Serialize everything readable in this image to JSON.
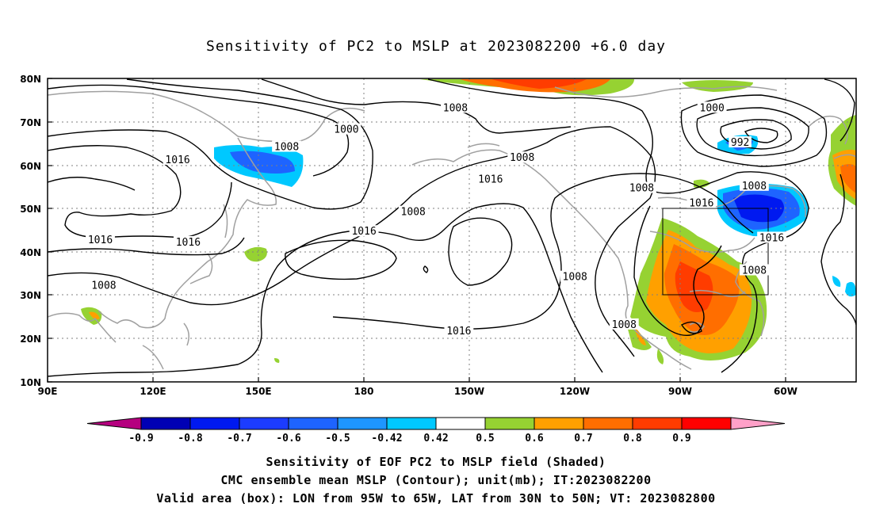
{
  "title": "Sensitivity of PC2 to MSLP at 2023082200 +6.0 day",
  "map": {
    "lat_labels": [
      "80N",
      "70N",
      "60N",
      "50N",
      "40N",
      "30N",
      "20N",
      "10N"
    ],
    "lon_labels": [
      "90E",
      "120E",
      "150E",
      "180",
      "150W",
      "120W",
      "90W",
      "60W"
    ],
    "contour_labels": [
      {
        "text": "1000",
        "lon": 175,
        "lat": 68
      },
      {
        "text": "1008",
        "lon": 158,
        "lat": 64
      },
      {
        "text": "1016",
        "lon": 127,
        "lat": 61
      },
      {
        "text": "1016",
        "lon": 105,
        "lat": 42.5
      },
      {
        "text": "1016",
        "lon": 130,
        "lat": 42
      },
      {
        "text": "1008",
        "lon": 106,
        "lat": 32
      },
      {
        "text": "1008",
        "lon": 194,
        "lat": 49
      },
      {
        "text": "1016",
        "lon": 180,
        "lat": 44.5
      },
      {
        "text": "1008",
        "lon": 206,
        "lat": 73
      },
      {
        "text": "1008",
        "lon": 225,
        "lat": 61.5
      },
      {
        "text": "1016",
        "lon": 216,
        "lat": 56.5
      },
      {
        "text": "1016",
        "lon": 207,
        "lat": 21.5
      },
      {
        "text": "1008",
        "lon": 240,
        "lat": 34
      },
      {
        "text": "1008",
        "lon": 254,
        "lat": 23
      },
      {
        "text": "1008",
        "lon": 259,
        "lat": 54.5
      },
      {
        "text": "1000",
        "lon": 279,
        "lat": 73
      },
      {
        "text": "992",
        "lon": 287,
        "lat": 65
      },
      {
        "text": "1008",
        "lon": 291,
        "lat": 55
      },
      {
        "text": "1016",
        "lon": 276,
        "lat": 51
      },
      {
        "text": "1016",
        "lon": 296,
        "lat": 43
      },
      {
        "text": "1008",
        "lon": 291,
        "lat": 35.5
      }
    ],
    "valid_box": {
      "lon_min": 265,
      "lon_max": 295,
      "lat_min": 30,
      "lat_max": 50
    }
  },
  "colorbar": {
    "labels": [
      "-0.9",
      "-0.8",
      "-0.7",
      "-0.6",
      "-0.5",
      "-0.42",
      "0.42",
      "0.5",
      "0.6",
      "0.7",
      "0.8",
      "0.9"
    ],
    "colors": [
      "#b5007f",
      "#0000b4",
      "#0019f0",
      "#1c3cff",
      "#1e64ff",
      "#1e96ff",
      "#00c8ff",
      "#ffffff",
      "#96d232",
      "#ffa000",
      "#ff6e00",
      "#ff3c00",
      "#ff0000",
      "#ffa0c8"
    ]
  },
  "footer": {
    "line1": "Sensitivity of EOF PC2 to MSLP field (Shaded)",
    "line2": "CMC ensemble mean MSLP (Contour); unit(mb); IT:2023082200",
    "line3": "Valid area (box): LON from 95W to 65W, LAT from 30N to 50N; VT: 2023082800"
  }
}
